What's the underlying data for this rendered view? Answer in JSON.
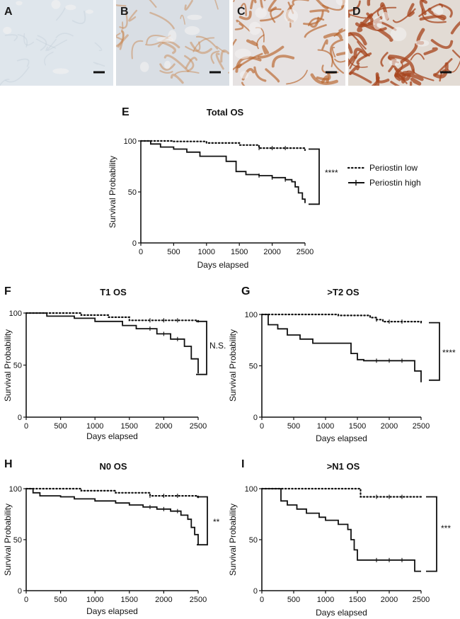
{
  "histology": [
    {
      "letter": "A",
      "base": "#dfe6ec",
      "stain": "#b8c6d2",
      "intensity": 0.1
    },
    {
      "letter": "B",
      "base": "#d9dee4",
      "stain": "#c98a55",
      "intensity": 0.45
    },
    {
      "letter": "C",
      "base": "#e6e2e2",
      "stain": "#b8642c",
      "intensity": 0.75
    },
    {
      "letter": "D",
      "base": "#e2dbd4",
      "stain": "#a8461f",
      "intensity": 0.95
    }
  ],
  "legend": {
    "low_label": "Periostin low",
    "high_label": "Periostin high"
  },
  "colors": {
    "line": "#111111",
    "axis": "#111111"
  },
  "chart_data": [
    {
      "id": "total",
      "panel": "E",
      "type": "line",
      "title": "Total OS",
      "xlabel": "Days elapsed",
      "ylabel": "Survival Probability",
      "xlim": [
        0,
        2500
      ],
      "ylim": [
        0,
        100
      ],
      "xticks": [
        "0",
        "500",
        "1000",
        "1500",
        "2000",
        "2500"
      ],
      "yticks": [
        "0",
        "50",
        "100"
      ],
      "significance": "****",
      "bracket_y": [
        92,
        38
      ],
      "series": [
        {
          "name": "Periostin low",
          "style": "dotted",
          "x": [
            0,
            500,
            1000,
            1500,
            1800,
            2500
          ],
          "y": [
            100,
            99.5,
            98,
            96,
            93,
            91
          ]
        },
        {
          "name": "Periostin high",
          "style": "solid",
          "x": [
            0,
            150,
            300,
            500,
            700,
            900,
            1300,
            1450,
            1600,
            1800,
            2000,
            2200,
            2300,
            2350,
            2400,
            2460,
            2500
          ],
          "y": [
            100,
            97,
            94,
            92,
            89,
            85,
            80,
            70,
            67,
            66,
            64,
            62,
            60,
            55,
            49,
            43,
            39
          ]
        }
      ]
    },
    {
      "id": "t1",
      "panel": "F",
      "type": "line",
      "title": "T1 OS",
      "xlabel": "Days elapsed",
      "ylabel": "Survival Probability",
      "xlim": [
        0,
        2500
      ],
      "ylim": [
        0,
        100
      ],
      "xticks": [
        "0",
        "500",
        "1000",
        "1500",
        "2000",
        "2500"
      ],
      "yticks": [
        "0",
        "50",
        "100"
      ],
      "significance": "N.S.",
      "bracket_y": [
        92,
        41
      ],
      "series": [
        {
          "name": "Periostin low",
          "style": "dotted",
          "x": [
            0,
            800,
            1200,
            1500,
            2500
          ],
          "y": [
            100,
            98,
            96,
            93,
            91
          ]
        },
        {
          "name": "Periostin high",
          "style": "solid",
          "x": [
            0,
            300,
            700,
            1000,
            1400,
            1600,
            1900,
            2100,
            2300,
            2400,
            2500
          ],
          "y": [
            100,
            97,
            95,
            92,
            88,
            85,
            80,
            75,
            68,
            56,
            42
          ]
        }
      ]
    },
    {
      "id": "t2",
      "panel": "G",
      "type": "line",
      "title": ">T2 OS",
      "xlabel": "Days elapsed",
      "ylabel": "Survival Probability",
      "xlim": [
        0,
        2500
      ],
      "ylim": [
        0,
        100
      ],
      "xticks": [
        "0",
        "500",
        "1000",
        "1500",
        "2000",
        "2500"
      ],
      "yticks": [
        "0",
        "50",
        "100"
      ],
      "significance": "****",
      "bracket_y": [
        92,
        36
      ],
      "series": [
        {
          "name": "Periostin low",
          "style": "dotted",
          "x": [
            0,
            1200,
            1700,
            1800,
            1900,
            2500
          ],
          "y": [
            100,
            99,
            97,
            95,
            93,
            91
          ]
        },
        {
          "name": "Periostin high",
          "style": "solid",
          "x": [
            0,
            100,
            250,
            400,
            600,
            800,
            1400,
            1500,
            1600,
            2300,
            2400,
            2500
          ],
          "y": [
            100,
            90,
            86,
            80,
            76,
            72,
            62,
            56,
            55,
            55,
            45,
            34
          ]
        }
      ]
    },
    {
      "id": "n0",
      "panel": "H",
      "type": "line",
      "title": "N0 OS",
      "xlabel": "Days elapsed",
      "ylabel": "Survival Probability",
      "xlim": [
        0,
        2500
      ],
      "ylim": [
        0,
        100
      ],
      "xticks": [
        "0",
        "500",
        "1000",
        "1500",
        "2000",
        "2500"
      ],
      "yticks": [
        "0",
        "50",
        "100"
      ],
      "significance": "**",
      "bracket_y": [
        92,
        45
      ],
      "series": [
        {
          "name": "Periostin low",
          "style": "dotted",
          "x": [
            0,
            800,
            1300,
            1800,
            2500
          ],
          "y": [
            100,
            98,
            96,
            93,
            91
          ]
        },
        {
          "name": "Periostin high",
          "style": "solid",
          "x": [
            0,
            100,
            200,
            500,
            700,
            1000,
            1300,
            1500,
            1700,
            1900,
            2100,
            2250,
            2350,
            2400,
            2450,
            2500
          ],
          "y": [
            100,
            96,
            93,
            92,
            90,
            88,
            86,
            84,
            82,
            80,
            78,
            74,
            70,
            62,
            55,
            45
          ]
        }
      ]
    },
    {
      "id": "n1",
      "panel": "I",
      "type": "line",
      "title": ">N1 OS",
      "xlabel": "Days elapsed",
      "ylabel": "Survival Probability",
      "xlim": [
        0,
        2500
      ],
      "ylim": [
        0,
        100
      ],
      "xticks": [
        "0",
        "500",
        "1000",
        "1500",
        "2000",
        "2500"
      ],
      "yticks": [
        "0",
        "50",
        "100"
      ],
      "significance": "***",
      "bracket_y": [
        92,
        19
      ],
      "series": [
        {
          "name": "Periostin low",
          "style": "dotted",
          "x": [
            0,
            1550,
            2500
          ],
          "y": [
            100,
            92,
            92
          ]
        },
        {
          "name": "Periostin high",
          "style": "solid",
          "x": [
            0,
            300,
            400,
            550,
            700,
            900,
            1000,
            1200,
            1350,
            1400,
            1450,
            1500,
            2300,
            2400,
            2500
          ],
          "y": [
            100,
            88,
            84,
            80,
            76,
            72,
            69,
            65,
            60,
            50,
            40,
            30,
            30,
            19,
            19
          ]
        }
      ]
    }
  ]
}
